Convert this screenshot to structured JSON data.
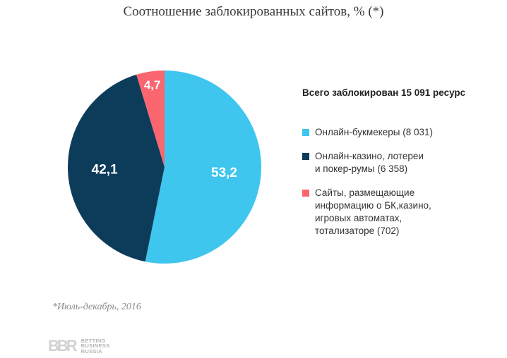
{
  "chart_data": {
    "type": "pie",
    "title": "Соотношение заблокированных сайтов, % (*)",
    "legend_heading": "Всего заблокирован 15 091 ресурс",
    "legend_placement": "right",
    "slices": [
      {
        "value": 53.2,
        "label": "53,2",
        "legend_lines": [
          "Онлайн-букмекеры (8 031)"
        ],
        "color": "#3ec6ee"
      },
      {
        "value": 42.1,
        "label": "42,1",
        "legend_lines": [
          "Онлайн-казино, лотереи",
          "и покер-румы (6 358)"
        ],
        "color": "#0d3c5b"
      },
      {
        "value": 4.7,
        "label": "4,7",
        "legend_lines": [
          "Сайты, размещающие",
          "информацию о БК,казино,",
          "игровых автоматах,",
          "тотализаторе (702)"
        ],
        "color": "#fb6570"
      }
    ],
    "footnote": "*Июль-декабрь, 2016"
  },
  "logo": {
    "mark": "BBR",
    "lines": [
      "BETTING",
      "BUSINESS",
      "RUSSIA"
    ]
  }
}
